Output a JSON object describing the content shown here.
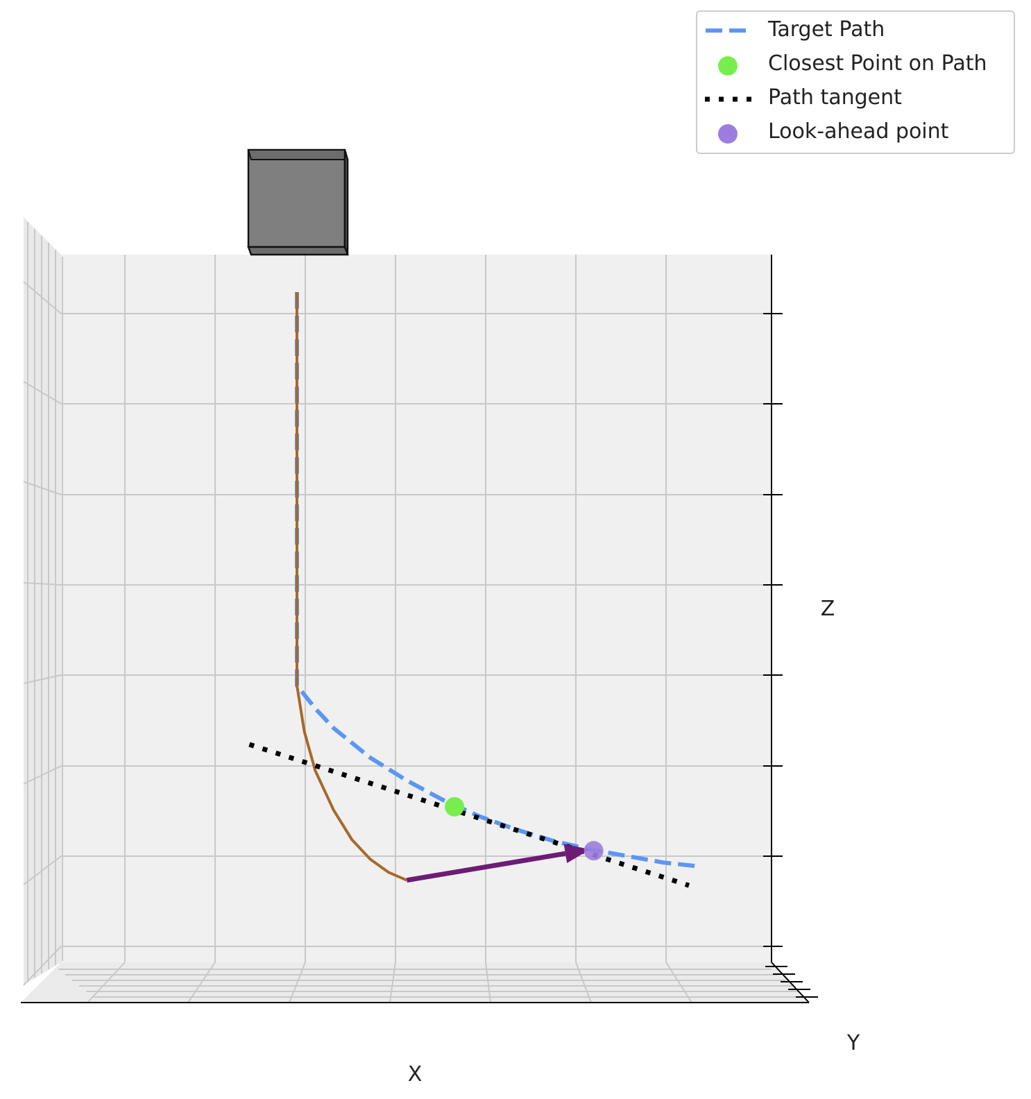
{
  "chart_data": {
    "type": "line",
    "projection": "3d",
    "title": "",
    "xlabel": "X",
    "ylabel": "Y",
    "zlabel": "Z",
    "tick_labels_visible": false,
    "grid": true,
    "legend": {
      "placement": "top-right",
      "entries": [
        {
          "label": "Target Path",
          "marker": "dashed-line",
          "color": "#5b96f4"
        },
        {
          "label": "Closest Point on Path",
          "marker": "circle",
          "color": "#78ee4e"
        },
        {
          "label": "Path tangent",
          "marker": "dotted-line",
          "color": "#000000"
        },
        {
          "label": "Look-ahead point",
          "marker": "circle",
          "color": "#9c7ddf"
        }
      ]
    },
    "series": [
      {
        "name": "Target Path",
        "style": "dashed",
        "color": "#5b96f4",
        "points": [
          [
            0,
            0,
            1
          ],
          [
            0,
            0,
            0.95
          ],
          [
            0,
            0,
            0.9
          ],
          [
            0,
            0,
            0.85
          ],
          [
            0,
            0,
            0.8
          ],
          [
            0,
            0,
            0.75
          ],
          [
            0,
            0,
            0.7
          ],
          [
            0,
            0,
            0.65
          ],
          [
            0,
            0,
            0.6
          ],
          [
            0,
            0,
            0.55
          ],
          [
            0,
            0,
            0.5
          ],
          [
            0,
            0,
            0.45
          ],
          [
            0,
            0,
            0.4
          ],
          [
            0.05,
            0,
            0.365
          ],
          [
            0.1,
            0,
            0.335
          ],
          [
            0.2,
            0,
            0.29
          ],
          [
            0.3,
            0,
            0.255
          ],
          [
            0.4,
            0,
            0.225
          ],
          [
            0.5,
            0,
            0.2
          ],
          [
            0.6,
            0,
            0.18
          ],
          [
            0.7,
            0,
            0.163
          ],
          [
            0.8,
            0,
            0.15
          ],
          [
            0.9,
            0,
            0.14
          ],
          [
            1.0,
            0,
            0.13
          ],
          [
            1.1,
            0,
            0.124
          ]
        ]
      },
      {
        "style": "solid",
        "color": "#a8682a",
        "points": [
          [
            0,
            0,
            1
          ],
          [
            0,
            0,
            0.9
          ],
          [
            0,
            0,
            0.8
          ],
          [
            0,
            0,
            0.7
          ],
          [
            0,
            0,
            0.6
          ],
          [
            0,
            0,
            0.5
          ],
          [
            0,
            0,
            0.4
          ],
          [
            0.02,
            0,
            0.33
          ],
          [
            0.05,
            0,
            0.27
          ],
          [
            0.1,
            0,
            0.21
          ],
          [
            0.15,
            0,
            0.165
          ],
          [
            0.2,
            0,
            0.135
          ],
          [
            0.25,
            0,
            0.115
          ],
          [
            0.3,
            0,
            0.103
          ]
        ]
      }
    ],
    "tangent": {
      "name": "Path tangent",
      "style": "dotted",
      "color": "#000000",
      "points": [
        [
          -0.13,
          0,
          0.31
        ],
        [
          1.07,
          0,
          0.095
        ]
      ]
    },
    "closest_point": {
      "name": "Closest Point on Path",
      "color": "#78ee4e",
      "point": [
        0.43,
        0,
        0.215
      ]
    },
    "lookahead_point": {
      "name": "Look-ahead point",
      "color": "#9c7ddf",
      "point": [
        0.81,
        0,
        0.148
      ]
    },
    "heading_arrow": {
      "color": "#6e1b76",
      "from": [
        0.3,
        0,
        0.103
      ],
      "to": [
        0.8,
        0,
        0.15
      ]
    },
    "obstacle_box": {
      "color": "#808080",
      "center": [
        0,
        0,
        1.05
      ]
    }
  }
}
